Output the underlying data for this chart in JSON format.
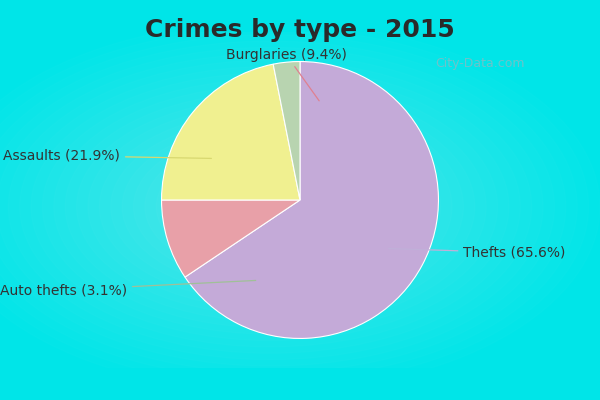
{
  "title": "Crimes by type - 2015",
  "slices": [
    {
      "label": "Thefts (65.6%)",
      "value": 65.6,
      "color": "#c4aad8"
    },
    {
      "label": "Burglaries (9.4%)",
      "value": 9.4,
      "color": "#e8a0a8"
    },
    {
      "label": "Assaults (21.9%)",
      "value": 21.9,
      "color": "#f0f090"
    },
    {
      "label": "Auto thefts (3.1%)",
      "value": 3.1,
      "color": "#b8d4b0"
    }
  ],
  "background_top": "#00e5e8",
  "background_main": "#d0ecd8",
  "title_fontsize": 18,
  "label_fontsize": 10,
  "watermark": "City-Data.com",
  "startangle": 90,
  "title_color": "#2a2a2a"
}
